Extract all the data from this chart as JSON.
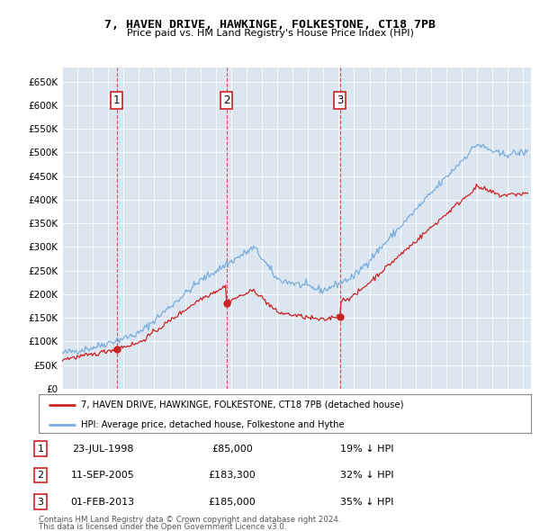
{
  "title": "7, HAVEN DRIVE, HAWKINGE, FOLKESTONE, CT18 7PB",
  "subtitle": "Price paid vs. HM Land Registry's House Price Index (HPI)",
  "ylim": [
    0,
    680000
  ],
  "yticks": [
    0,
    50000,
    100000,
    150000,
    200000,
    250000,
    300000,
    350000,
    400000,
    450000,
    500000,
    550000,
    600000,
    650000
  ],
  "ytick_labels": [
    "£0",
    "£50K",
    "£100K",
    "£150K",
    "£200K",
    "£250K",
    "£300K",
    "£350K",
    "£400K",
    "£450K",
    "£500K",
    "£550K",
    "£600K",
    "£650K"
  ],
  "background_color": "#dce6f1",
  "hpi_line_color": "#7aaddb",
  "price_line_color": "#cc2222",
  "transactions": [
    {
      "num": 1,
      "date_str": "23-JUL-1998",
      "year": 1998.55,
      "price": 85000,
      "price_str": "£85,000",
      "pct": "19%"
    },
    {
      "num": 2,
      "date_str": "11-SEP-2005",
      "year": 2005.69,
      "price": 183300,
      "price_str": "£183,300",
      "pct": "32%"
    },
    {
      "num": 3,
      "date_str": "01-FEB-2013",
      "year": 2013.08,
      "price": 185000,
      "price_str": "£185,000",
      "pct": "35%"
    }
  ],
  "legend_label_price": "7, HAVEN DRIVE, HAWKINGE, FOLKESTONE, CT18 7PB (detached house)",
  "legend_label_hpi": "HPI: Average price, detached house, Folkestone and Hythe",
  "footer1": "Contains HM Land Registry data © Crown copyright and database right 2024.",
  "footer2": "This data is licensed under the Open Government Licence v3.0.",
  "xmin": 1995,
  "xmax": 2025.5
}
